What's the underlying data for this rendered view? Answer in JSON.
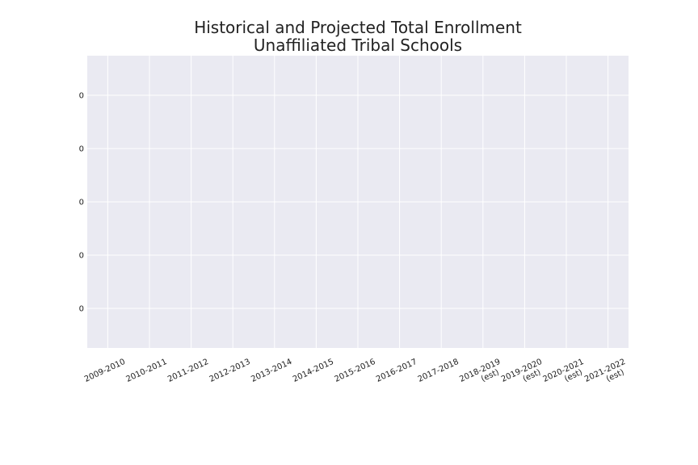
{
  "chart_data": {
    "type": "line",
    "title": "Historical and Projected Total Enrollment",
    "subtitle": "Unaffiliated Tribal Schools",
    "xlabel": "",
    "ylabel": "",
    "categories": [
      [
        "2009-2010"
      ],
      [
        "2010-2011"
      ],
      [
        "2011-2012"
      ],
      [
        "2012-2013"
      ],
      [
        "2013-2014"
      ],
      [
        "2014-2015"
      ],
      [
        "2015-2016"
      ],
      [
        "2016-2017"
      ],
      [
        "2017-2018"
      ],
      [
        "2018-2019",
        "(est)"
      ],
      [
        "2019-2020",
        "(est)"
      ],
      [
        "2020-2021",
        "(est)"
      ],
      [
        "2021-2022",
        "(est)"
      ]
    ],
    "y_tick_labels": [
      "0",
      "0",
      "0",
      "0",
      "0"
    ],
    "series": [],
    "grid": true,
    "colors": {
      "plot_background": "#eaeaf2",
      "grid": "#ffffff",
      "text": "#222222"
    }
  }
}
